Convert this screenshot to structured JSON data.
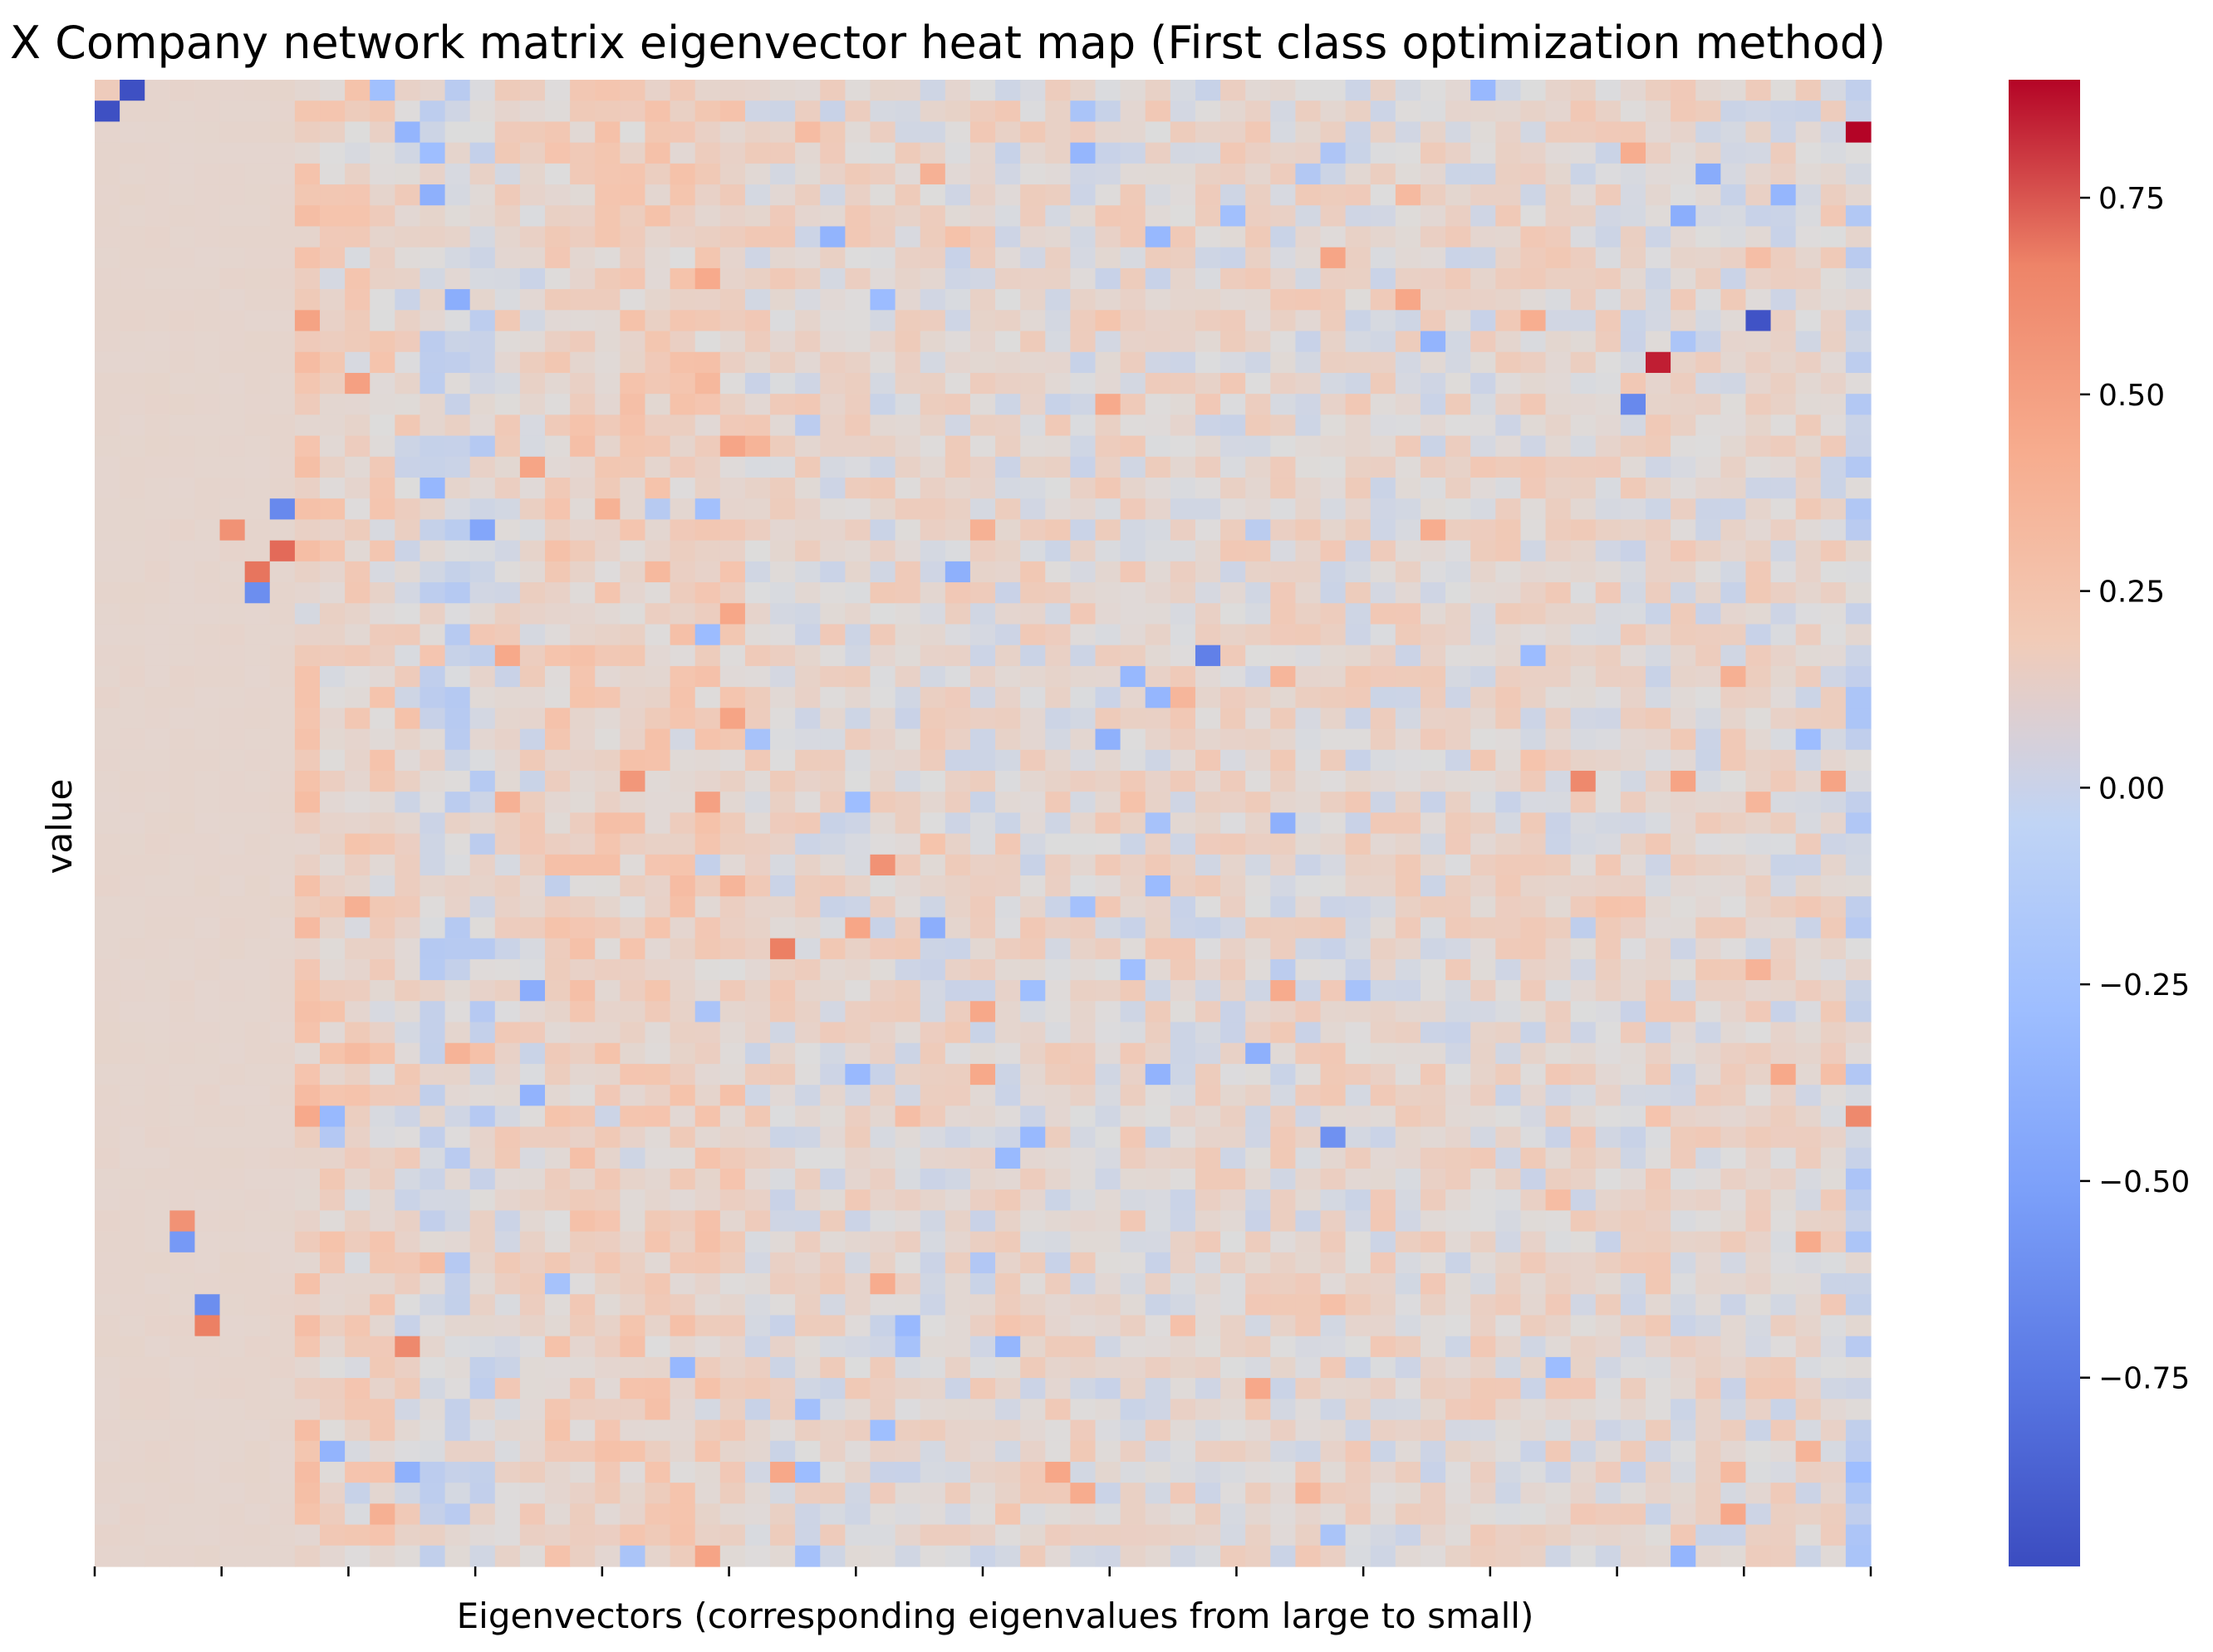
{
  "chart_data": {
    "type": "heatmap",
    "title": "X Company network matrix eigenvector heat map (First class optimization method)",
    "xlabel": "Eigenvectors (corresponding eigenvalues from large to small)",
    "ylabel": "value",
    "rows": 71,
    "cols": 71,
    "color_scale": {
      "colormap": "coolwarm",
      "min": -0.99,
      "max": 0.9,
      "colorbar_ticks": [
        0.75,
        0.5,
        0.25,
        0.0,
        -0.25,
        -0.5,
        -0.75
      ],
      "colorbar_tick_labels": [
        "0.75",
        "0.50",
        "0.25",
        "0.00",
        "−0.25",
        "−0.50",
        "−0.75"
      ],
      "colors": {
        "low": "#3b4cc0",
        "mid": "#dddcdc",
        "high": "#b40426"
      }
    },
    "x_ticks_count": 15,
    "x_tick_labels_visible": false,
    "y_tick_labels_visible": false,
    "notable_cells": [
      {
        "row": 0,
        "col": 0,
        "value": 0.12
      },
      {
        "row": 0,
        "col": 1,
        "value": -0.97
      },
      {
        "row": 1,
        "col": 0,
        "value": -0.97
      },
      {
        "row": 2,
        "col": 70,
        "value": 0.9
      },
      {
        "row": 11,
        "col": 66,
        "value": -0.95
      },
      {
        "row": 13,
        "col": 62,
        "value": 0.85
      },
      {
        "row": 15,
        "col": 61,
        "value": -0.65
      },
      {
        "row": 20,
        "col": 7,
        "value": -0.65
      },
      {
        "row": 21,
        "col": 5,
        "value": 0.55
      },
      {
        "row": 22,
        "col": 7,
        "value": 0.7
      },
      {
        "row": 23,
        "col": 6,
        "value": 0.68
      },
      {
        "row": 24,
        "col": 6,
        "value": -0.62
      },
      {
        "row": 27,
        "col": 44,
        "value": -0.7
      },
      {
        "row": 33,
        "col": 59,
        "value": 0.6
      },
      {
        "row": 37,
        "col": 31,
        "value": 0.55
      },
      {
        "row": 41,
        "col": 27,
        "value": 0.65
      },
      {
        "row": 49,
        "col": 70,
        "value": 0.6
      },
      {
        "row": 50,
        "col": 49,
        "value": -0.6
      },
      {
        "row": 54,
        "col": 3,
        "value": 0.55
      },
      {
        "row": 55,
        "col": 3,
        "value": -0.55
      },
      {
        "row": 58,
        "col": 4,
        "value": -0.62
      },
      {
        "row": 59,
        "col": 4,
        "value": 0.65
      },
      {
        "row": 60,
        "col": 12,
        "value": 0.6
      }
    ]
  }
}
